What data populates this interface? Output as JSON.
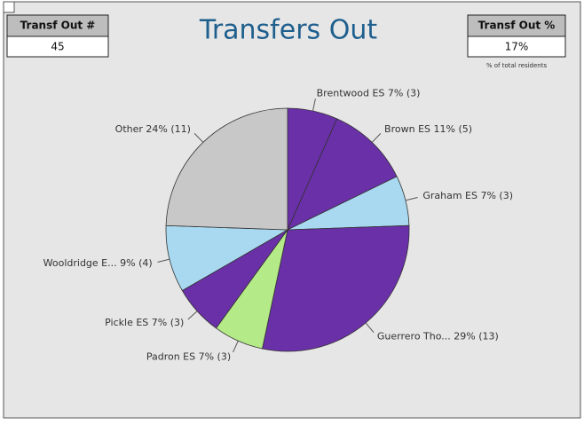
{
  "kpis": [
    {
      "title": "Transf Out #",
      "value": "45"
    },
    {
      "title": "Transf Out %",
      "value": "17%",
      "note": "% of total residents"
    }
  ],
  "chart_data": {
    "type": "pie",
    "title": "Transfers Out",
    "categories": [
      "Brentwood ES",
      "Brown ES",
      "Graham ES",
      "Guerrero Tho...",
      "Padron ES",
      "Pickle ES",
      "Wooldridge E...",
      "Other"
    ],
    "values": [
      3,
      5,
      3,
      13,
      3,
      3,
      4,
      11
    ],
    "value_labels": [
      "7% (3)",
      "11% (5)",
      "7% (3)",
      "29% (13)",
      "7% (3)",
      "7% (3)",
      "9% (4)",
      "24% (11)"
    ],
    "colors": [
      "#6a30a8",
      "#6a30a8",
      "#a9d9f0",
      "#6a30a8",
      "#b4ea88",
      "#6a30a8",
      "#a9d9f0",
      "#c8c8c8"
    ]
  }
}
